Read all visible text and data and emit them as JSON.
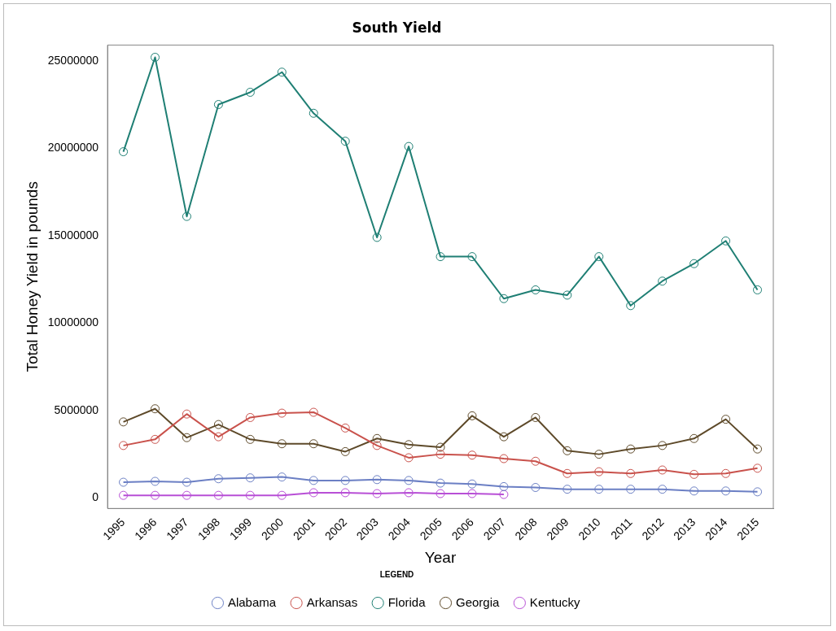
{
  "chart_data": {
    "type": "line",
    "title": "South Yield",
    "xlabel": "Year",
    "ylabel": "Total Honey Yield in pounds",
    "legend_title": "LEGEND",
    "legend": "bottom",
    "marker": "circle",
    "line_style": "solid",
    "grid": false,
    "categories": [
      "1995",
      "1996",
      "1997",
      "1998",
      "1999",
      "2000",
      "2001",
      "2002",
      "2003",
      "2004",
      "2005",
      "2006",
      "2007",
      "2008",
      "2009",
      "2010",
      "2011",
      "2012",
      "2013",
      "2014",
      "2015"
    ],
    "ylim": [
      -600000,
      25900000
    ],
    "yticks": [
      0,
      5000000,
      10000000,
      15000000,
      20000000,
      25000000
    ],
    "series": [
      {
        "name": "Alabama",
        "color": "#6b7fc4",
        "values": [
          900000,
          950000,
          900000,
          1100000,
          1150000,
          1200000,
          1000000,
          1000000,
          1050000,
          1000000,
          850000,
          800000,
          650000,
          600000,
          500000,
          500000,
          500000,
          500000,
          400000,
          400000,
          350000
        ]
      },
      {
        "name": "Arkansas",
        "color": "#c9524c",
        "values": [
          3000000,
          3350000,
          4800000,
          3500000,
          4600000,
          4850000,
          4900000,
          4000000,
          3000000,
          2300000,
          2500000,
          2450000,
          2250000,
          2100000,
          1400000,
          1500000,
          1400000,
          1600000,
          1350000,
          1400000,
          1700000
        ]
      },
      {
        "name": "Florida",
        "color": "#1f7f74",
        "values": [
          19800000,
          25200000,
          16100000,
          22500000,
          23200000,
          24350000,
          22000000,
          20400000,
          14900000,
          20100000,
          13800000,
          13800000,
          11400000,
          11900000,
          11600000,
          13800000,
          11000000,
          12400000,
          13400000,
          14700000,
          11900000
        ]
      },
      {
        "name": "Georgia",
        "color": "#5e4a2a",
        "values": [
          4350000,
          5100000,
          3450000,
          4200000,
          3350000,
          3100000,
          3100000,
          2650000,
          3400000,
          3050000,
          2900000,
          4700000,
          3500000,
          4600000,
          2700000,
          2500000,
          2800000,
          3000000,
          3400000,
          4500000,
          2800000
        ]
      },
      {
        "name": "Kentucky",
        "color": "#b84fd6",
        "values": [
          150000,
          150000,
          150000,
          150000,
          150000,
          150000,
          300000,
          300000,
          250000,
          300000,
          250000,
          250000,
          200000,
          null,
          null,
          null,
          null,
          null,
          null,
          null,
          null
        ]
      }
    ]
  }
}
